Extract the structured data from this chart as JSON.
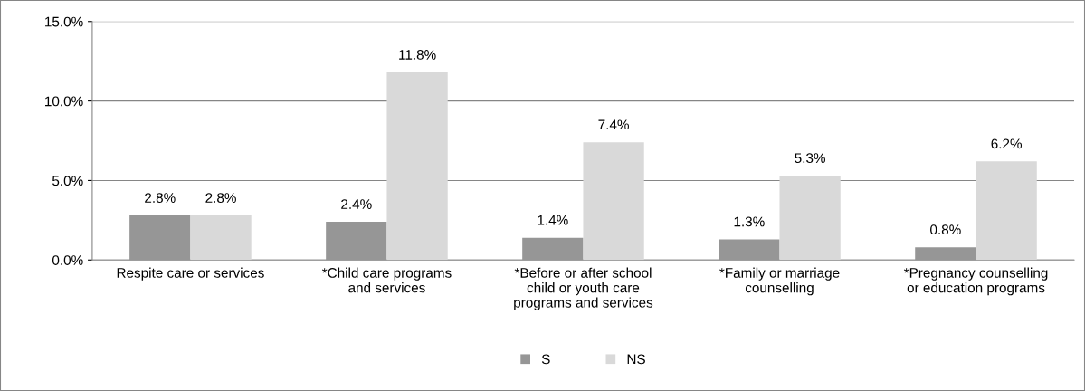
{
  "chart_data": {
    "type": "bar",
    "categories": [
      "Respite care or services",
      "*Child care programs\nand services",
      "*Before or after school\nchild or youth care\nprograms and services",
      "*Family or marriage\ncounselling",
      "*Pregnancy counselling\nor education programs"
    ],
    "series": [
      {
        "name": "S",
        "color": "#969696",
        "values": [
          2.8,
          2.4,
          1.4,
          1.3,
          0.8
        ],
        "value_labels": [
          "2.8%",
          "2.4%",
          "1.4%",
          "1.3%",
          "0.8%"
        ]
      },
      {
        "name": "NS",
        "color": "#d9d9d9",
        "values": [
          2.8,
          11.8,
          7.4,
          5.3,
          6.2
        ],
        "value_labels": [
          "2.8%",
          "11.8%",
          "7.4%",
          "5.3%",
          "6.2%"
        ]
      }
    ],
    "ylim": [
      0,
      15
    ],
    "yticks": [
      {
        "value": 0,
        "label": "0.0%"
      },
      {
        "value": 5,
        "label": "5.0%"
      },
      {
        "value": 10,
        "label": "10.0%"
      },
      {
        "value": 15,
        "label": "15.0%"
      }
    ],
    "grid": "y",
    "legend": "bottom"
  }
}
